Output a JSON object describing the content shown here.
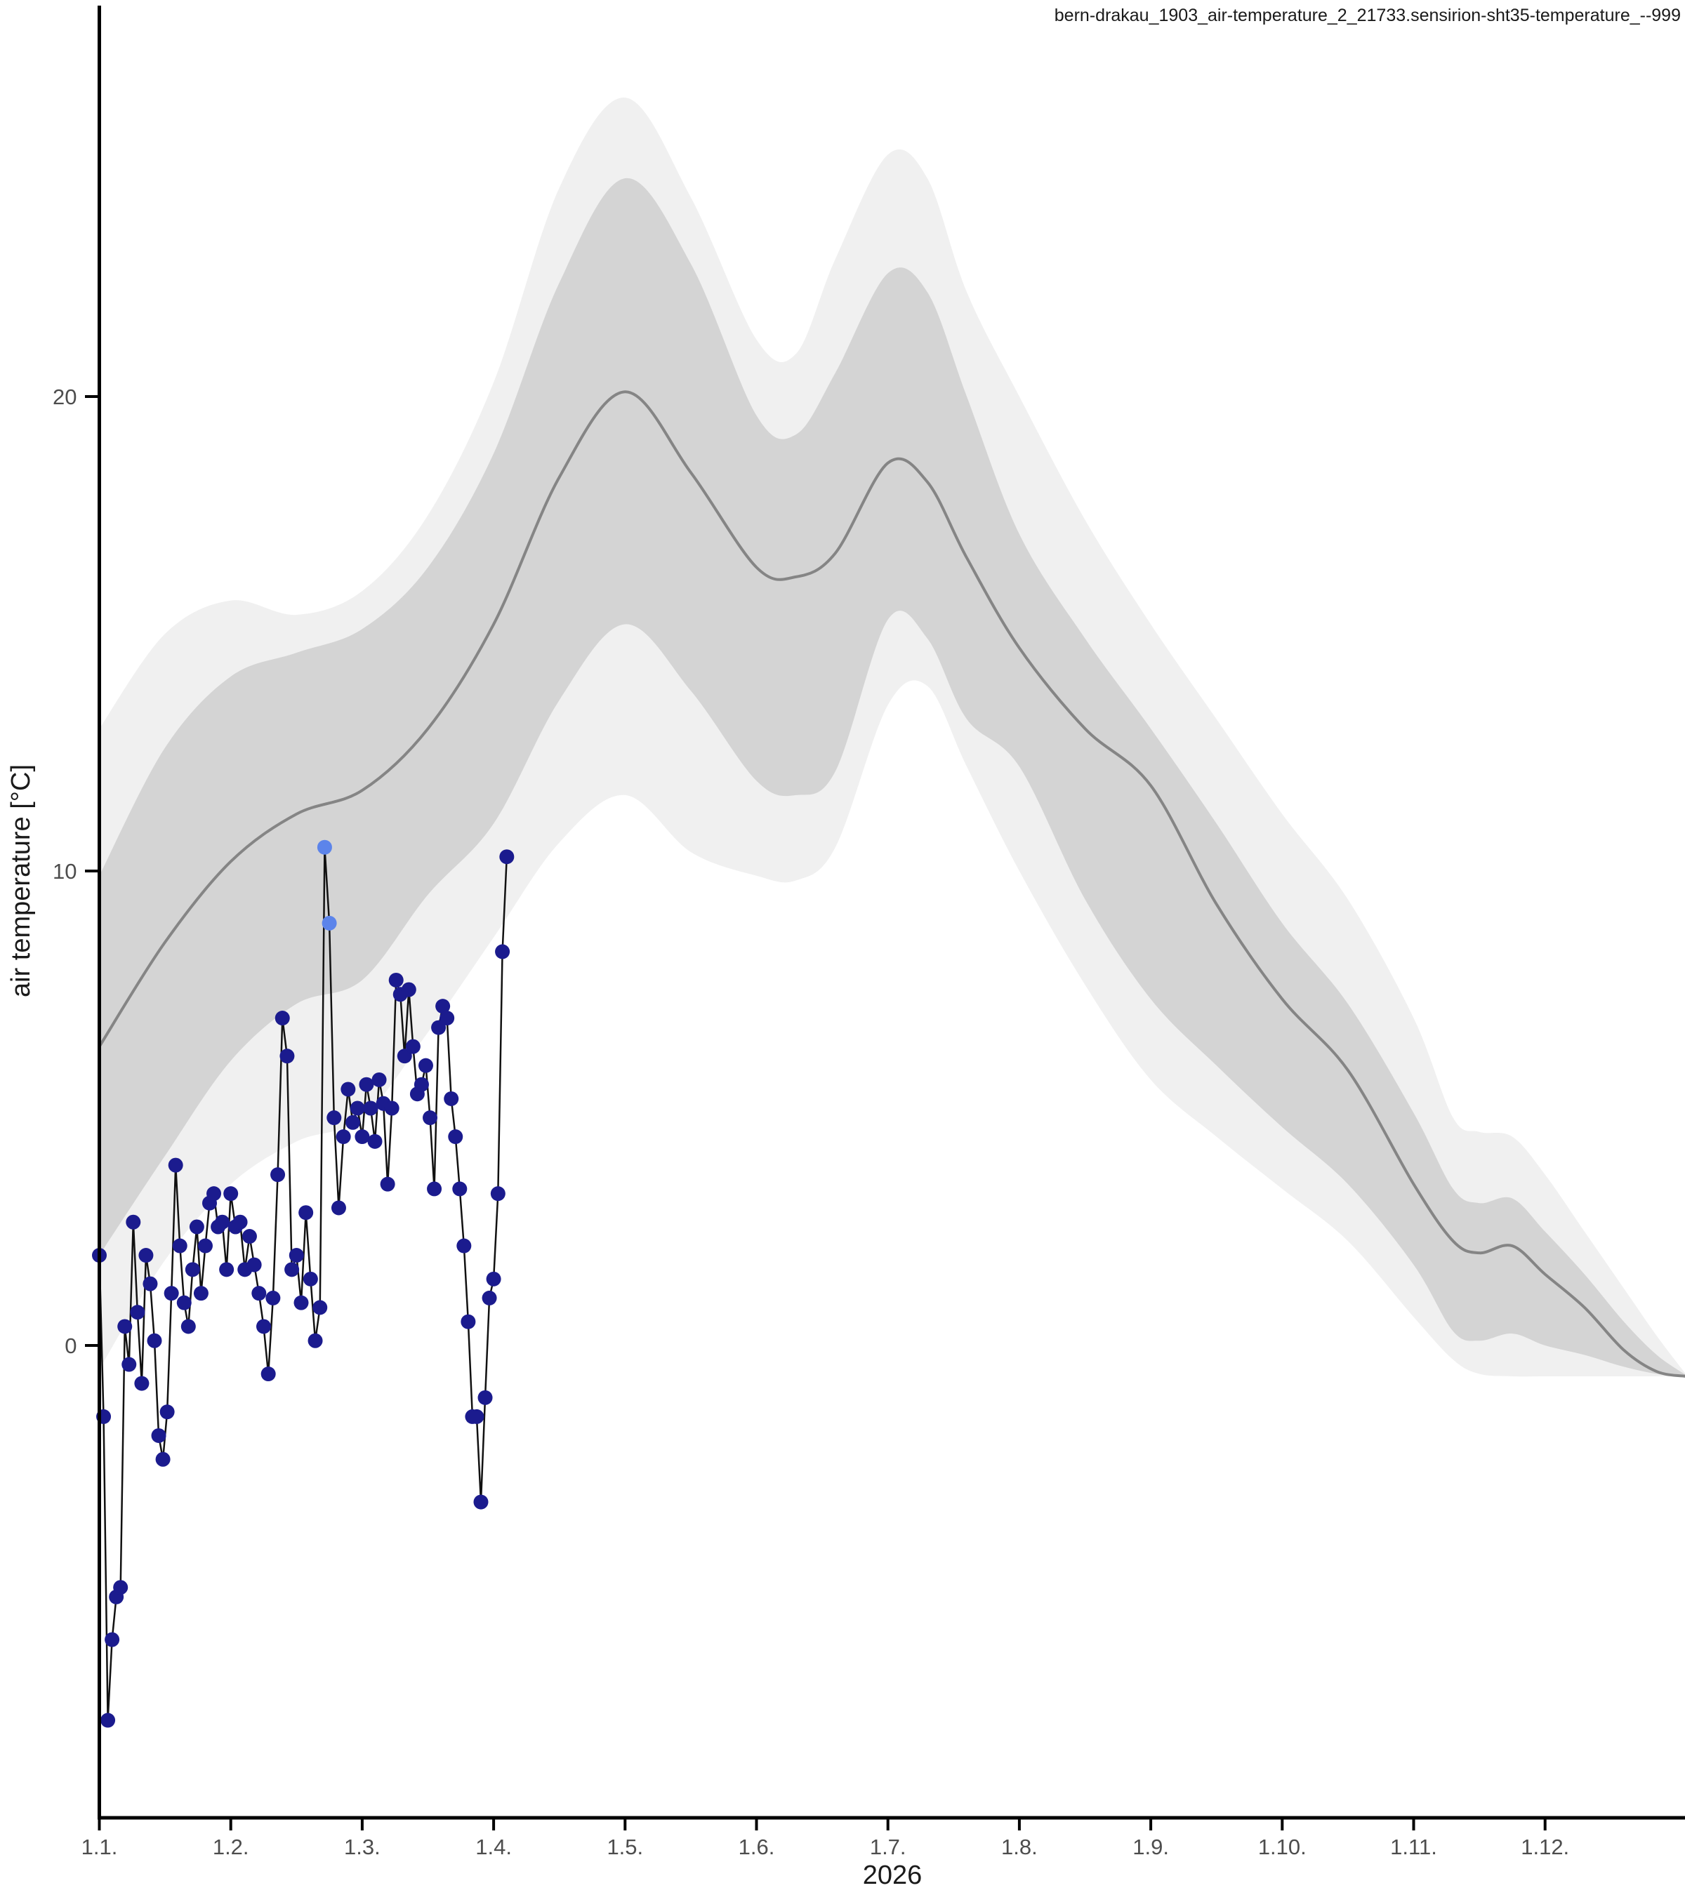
{
  "title": "bern-drakau_1903_air-temperature_2_21733.sensirion-sht35-temperature_--999",
  "y_label": "air temperature [°C]",
  "x_label": "2026",
  "colors": {
    "observation_point": "#1b1b8e",
    "flagged_point": "#5c84ea",
    "observation_line": "#111111",
    "mean_line": "#858585",
    "inner_band": "#d4d4d4",
    "outer_band": "#f0f0f0",
    "axis": "#000000",
    "tick_text": "#4d4d4d"
  },
  "chart_data": {
    "type": "line",
    "title": "bern-drakau_1903_air-temperature_2_21733.sensirion-sht35-temperature_--999",
    "xlabel": "2026",
    "ylabel": "air temperature [°C]",
    "x_tick_labels": [
      "1.1.",
      "1.2.",
      "1.3.",
      "1.4.",
      "1.5.",
      "1.6.",
      "1.7.",
      "1.8.",
      "1.9.",
      "1.10.",
      "1.11.",
      "1.12."
    ],
    "y_ticks": [
      0,
      10,
      20
    ],
    "ylim": [
      -10,
      28.5
    ],
    "xlim_months": [
      1.0,
      13.07
    ],
    "grid": false,
    "legend_position": "none",
    "month_lengths": [
      31,
      28,
      31,
      30,
      31,
      30,
      31,
      31,
      30,
      31,
      30,
      31
    ],
    "climatology_band": {
      "x_month": [
        1.0,
        1.5,
        2.0,
        2.5,
        3.0,
        3.5,
        4.0,
        4.5,
        5.0,
        5.5,
        6.0,
        6.3,
        6.6,
        7.0,
        7.3,
        7.6,
        8.0,
        8.5,
        9.0,
        9.5,
        10.0,
        10.5,
        11.0,
        11.3,
        11.5,
        11.75,
        12.0,
        12.3,
        12.6,
        12.85,
        13.07
      ],
      "outer_high": [
        13.0,
        15.0,
        15.7,
        15.4,
        15.9,
        17.5,
        20.3,
        24.4,
        26.3,
        24.2,
        21.2,
        20.9,
        22.9,
        25.1,
        24.6,
        22.2,
        20.0,
        17.4,
        15.2,
        13.2,
        11.2,
        9.4,
        6.9,
        4.8,
        4.5,
        4.4,
        3.6,
        2.4,
        1.2,
        0.2,
        -0.6
      ],
      "inner_high": [
        9.9,
        12.6,
        14.1,
        14.6,
        15.1,
        16.4,
        18.8,
        22.4,
        24.6,
        22.8,
        19.6,
        19.2,
        20.5,
        22.6,
        22.2,
        20.0,
        17.1,
        14.9,
        13.0,
        11.0,
        8.9,
        7.2,
        4.9,
        3.3,
        3.0,
        3.1,
        2.4,
        1.5,
        0.5,
        -0.2,
        -0.62
      ],
      "mean": [
        6.3,
        8.5,
        10.2,
        11.2,
        11.7,
        13.0,
        15.2,
        18.3,
        20.1,
        18.4,
        16.4,
        16.2,
        16.7,
        18.6,
        18.2,
        16.6,
        14.7,
        13.0,
        11.8,
        9.3,
        7.3,
        5.8,
        3.4,
        2.2,
        1.95,
        2.1,
        1.5,
        0.8,
        -0.1,
        -0.55,
        -0.65
      ],
      "inner_low": [
        1.9,
        4.0,
        6.0,
        7.2,
        7.7,
        9.5,
        11.0,
        13.6,
        15.2,
        13.8,
        11.9,
        11.6,
        12.1,
        15.3,
        14.9,
        13.2,
        12.2,
        9.4,
        7.3,
        5.9,
        4.6,
        3.4,
        1.7,
        0.3,
        0.1,
        0.25,
        0.0,
        -0.2,
        -0.45,
        -0.6,
        -0.65
      ],
      "outer_low": [
        -0.5,
        1.8,
        3.4,
        4.3,
        4.8,
        6.6,
        8.6,
        10.6,
        11.6,
        10.4,
        9.9,
        9.8,
        10.5,
        13.5,
        13.9,
        12.2,
        10.0,
        7.6,
        5.6,
        4.4,
        3.3,
        2.2,
        0.6,
        -0.3,
        -0.6,
        -0.65,
        -0.65,
        -0.65,
        -0.65,
        -0.65,
        -0.65
      ]
    },
    "observations": {
      "unit": "day_of_year",
      "points": [
        [
          1,
          1.9
        ],
        [
          2,
          -1.5
        ],
        [
          3,
          -7.9
        ],
        [
          4,
          -6.2
        ],
        [
          5,
          -5.3
        ],
        [
          6,
          -5.1
        ],
        [
          7,
          0.4
        ],
        [
          8,
          -0.4
        ],
        [
          9,
          2.6
        ],
        [
          10,
          0.7
        ],
        [
          11,
          -0.8
        ],
        [
          12,
          1.9
        ],
        [
          13,
          1.3
        ],
        [
          14,
          0.1
        ],
        [
          15,
          -1.9
        ],
        [
          16,
          -2.4
        ],
        [
          17,
          -1.4
        ],
        [
          18,
          1.1
        ],
        [
          19,
          3.8
        ],
        [
          20,
          2.1
        ],
        [
          21,
          0.9
        ],
        [
          22,
          0.4
        ],
        [
          23,
          1.6
        ],
        [
          24,
          2.5
        ],
        [
          25,
          1.1
        ],
        [
          26,
          2.1
        ],
        [
          27,
          3.0
        ],
        [
          28,
          3.2
        ],
        [
          29,
          2.5
        ],
        [
          30,
          2.6
        ],
        [
          31,
          1.6
        ],
        [
          32,
          3.2
        ],
        [
          33,
          2.5
        ],
        [
          34,
          2.6
        ],
        [
          35,
          1.6
        ],
        [
          36,
          2.3
        ],
        [
          37,
          1.7
        ],
        [
          38,
          1.1
        ],
        [
          39,
          0.4
        ],
        [
          40,
          -0.6
        ],
        [
          41,
          1.0
        ],
        [
          42,
          3.6
        ],
        [
          43,
          6.9
        ],
        [
          44,
          6.1
        ],
        [
          45,
          1.6
        ],
        [
          46,
          1.9
        ],
        [
          47,
          0.9
        ],
        [
          48,
          2.8
        ],
        [
          49,
          1.4
        ],
        [
          50,
          0.1
        ],
        [
          51,
          0.8
        ],
        [
          52,
          10.5
        ],
        [
          53,
          8.9
        ],
        [
          54,
          4.8
        ],
        [
          55,
          2.9
        ],
        [
          56,
          4.4
        ],
        [
          57,
          5.4
        ],
        [
          58,
          4.7
        ],
        [
          59,
          5.0
        ],
        [
          60,
          4.4
        ],
        [
          61,
          5.5
        ],
        [
          62,
          5.0
        ],
        [
          63,
          4.3
        ],
        [
          64,
          5.6
        ],
        [
          65,
          5.1
        ],
        [
          66,
          3.4
        ],
        [
          67,
          5.0
        ],
        [
          68,
          7.7
        ],
        [
          69,
          7.4
        ],
        [
          70,
          6.1
        ],
        [
          71,
          7.5
        ],
        [
          72,
          6.3
        ],
        [
          73,
          5.3
        ],
        [
          74,
          5.5
        ],
        [
          75,
          5.9
        ],
        [
          76,
          4.8
        ],
        [
          77,
          3.3
        ],
        [
          78,
          6.7
        ],
        [
          79,
          7.15
        ],
        [
          80,
          6.9
        ],
        [
          81,
          5.2
        ],
        [
          82,
          4.4
        ],
        [
          83,
          3.3
        ],
        [
          84,
          2.1
        ],
        [
          85,
          0.5
        ],
        [
          86,
          -1.5
        ],
        [
          87,
          -1.5
        ],
        [
          88,
          -3.3
        ],
        [
          89,
          -1.1
        ],
        [
          90,
          1.0
        ],
        [
          91,
          1.4
        ],
        [
          92,
          3.2
        ],
        [
          93,
          8.3
        ],
        [
          94,
          10.3
        ]
      ],
      "flagged_days": [
        52,
        53
      ]
    }
  }
}
